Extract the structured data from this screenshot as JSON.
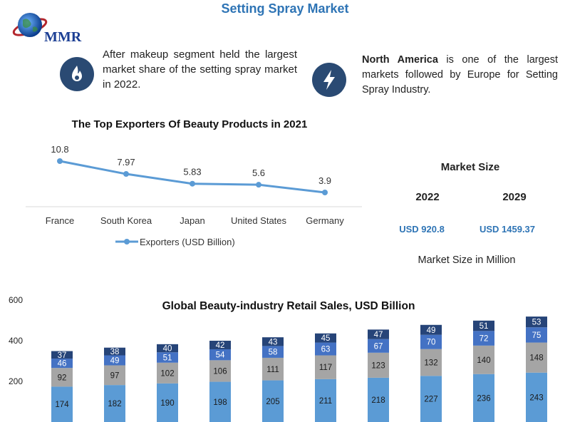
{
  "page": {
    "title": "Setting Spray Market",
    "logo_text": "MMR"
  },
  "info": {
    "left_text": "After makeup segment held the largest market share of the setting spray market in 2022.",
    "left_icon": "flame-icon",
    "right_bold": "North America",
    "right_text": " is one of the largest markets followed by Europe for Setting Spray Industry.",
    "right_icon": "lightning-icon"
  },
  "market_size": {
    "title": "Market Size",
    "year_a": "2022",
    "year_b": "2029",
    "value_a": "USD 920.8",
    "value_b": "USD 1459.37",
    "footnote": "Market Size in Million"
  },
  "colors": {
    "accent": "#2e74b5",
    "line": "#5b9bd5",
    "bar_base": "#5b9bd5",
    "bar_gray": "#a5a5a5",
    "bar_mid": "#4472c4",
    "bar_top": "#264478",
    "icon_bg": "#2a4a73"
  },
  "chart_data": [
    {
      "type": "line",
      "title": "The Top Exporters Of Beauty Products in 2021",
      "categories": [
        "France",
        "South Korea",
        "Japan",
        "United States",
        "Germany"
      ],
      "series": [
        {
          "name": "Exporters (USD Billion)",
          "values": [
            10.8,
            7.97,
            5.83,
            5.6,
            3.9
          ]
        }
      ],
      "value_labels": [
        "10.8",
        "7.97",
        "5.83",
        "5.6",
        "3.9"
      ],
      "legend_position": "bottom",
      "grid": false
    },
    {
      "type": "bar",
      "stacked": true,
      "title": "Global Beauty-industry Retail Sales, USD Billion",
      "ylim": [
        0,
        600
      ],
      "yticks": [
        "200",
        "400",
        "600"
      ],
      "grid": false,
      "series": [
        {
          "values": [
            174,
            182,
            190,
            198,
            205,
            211,
            218,
            227,
            236,
            243
          ]
        },
        {
          "values": [
            92,
            97,
            102,
            106,
            111,
            117,
            123,
            132,
            140,
            148
          ]
        },
        {
          "values": [
            46,
            49,
            51,
            54,
            58,
            63,
            67,
            70,
            72,
            75
          ]
        },
        {
          "values": [
            37,
            38,
            40,
            42,
            43,
            45,
            47,
            49,
            51,
            53
          ]
        }
      ]
    }
  ]
}
